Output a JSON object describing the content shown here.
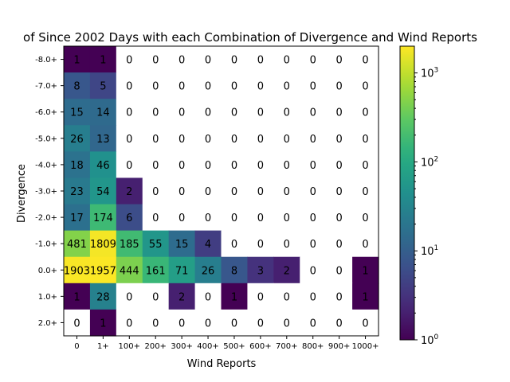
{
  "chart_data": {
    "type": "heatmap",
    "title": "of Since 2002 Days with each Combination of Divergence and Wind Reports",
    "xlabel": "Wind Reports",
    "ylabel": "Divergence",
    "x_categories": [
      "0",
      "1+",
      "100+",
      "200+",
      "300+",
      "400+",
      "500+",
      "600+",
      "700+",
      "800+",
      "900+",
      "1000+"
    ],
    "y_categories": [
      "-8.0+",
      "-7.0+",
      "-6.0+",
      "-5.0+",
      "-4.0+",
      "-3.0+",
      "-2.0+",
      "-1.0+",
      "0.0+",
      "1.0+",
      "2.0+"
    ],
    "values": [
      [
        1,
        1,
        0,
        0,
        0,
        0,
        0,
        0,
        0,
        0,
        0,
        0
      ],
      [
        8,
        5,
        0,
        0,
        0,
        0,
        0,
        0,
        0,
        0,
        0,
        0
      ],
      [
        15,
        14,
        0,
        0,
        0,
        0,
        0,
        0,
        0,
        0,
        0,
        0
      ],
      [
        26,
        13,
        0,
        0,
        0,
        0,
        0,
        0,
        0,
        0,
        0,
        0
      ],
      [
        18,
        46,
        0,
        0,
        0,
        0,
        0,
        0,
        0,
        0,
        0,
        0
      ],
      [
        23,
        54,
        2,
        0,
        0,
        0,
        0,
        0,
        0,
        0,
        0,
        0
      ],
      [
        17,
        174,
        6,
        0,
        0,
        0,
        0,
        0,
        0,
        0,
        0,
        0
      ],
      [
        481,
        1809,
        185,
        55,
        15,
        4,
        0,
        0,
        0,
        0,
        0,
        0
      ],
      [
        1903,
        1957,
        444,
        161,
        71,
        26,
        8,
        3,
        2,
        0,
        0,
        1
      ],
      [
        1,
        28,
        0,
        0,
        2,
        0,
        1,
        0,
        0,
        0,
        0,
        1
      ],
      [
        0,
        1,
        0,
        0,
        0,
        0,
        0,
        0,
        0,
        0,
        0,
        0
      ]
    ],
    "color_scale": "log",
    "colormap": "viridis",
    "zero_cells_color": "#ffffff",
    "colorbar": {
      "range": [
        1,
        2000
      ],
      "tick_labels": [
        {
          "base": "10",
          "exp": "0"
        },
        {
          "base": "10",
          "exp": "1"
        },
        {
          "base": "10",
          "exp": "2"
        },
        {
          "base": "10",
          "exp": "3"
        }
      ]
    },
    "grid": false
  }
}
